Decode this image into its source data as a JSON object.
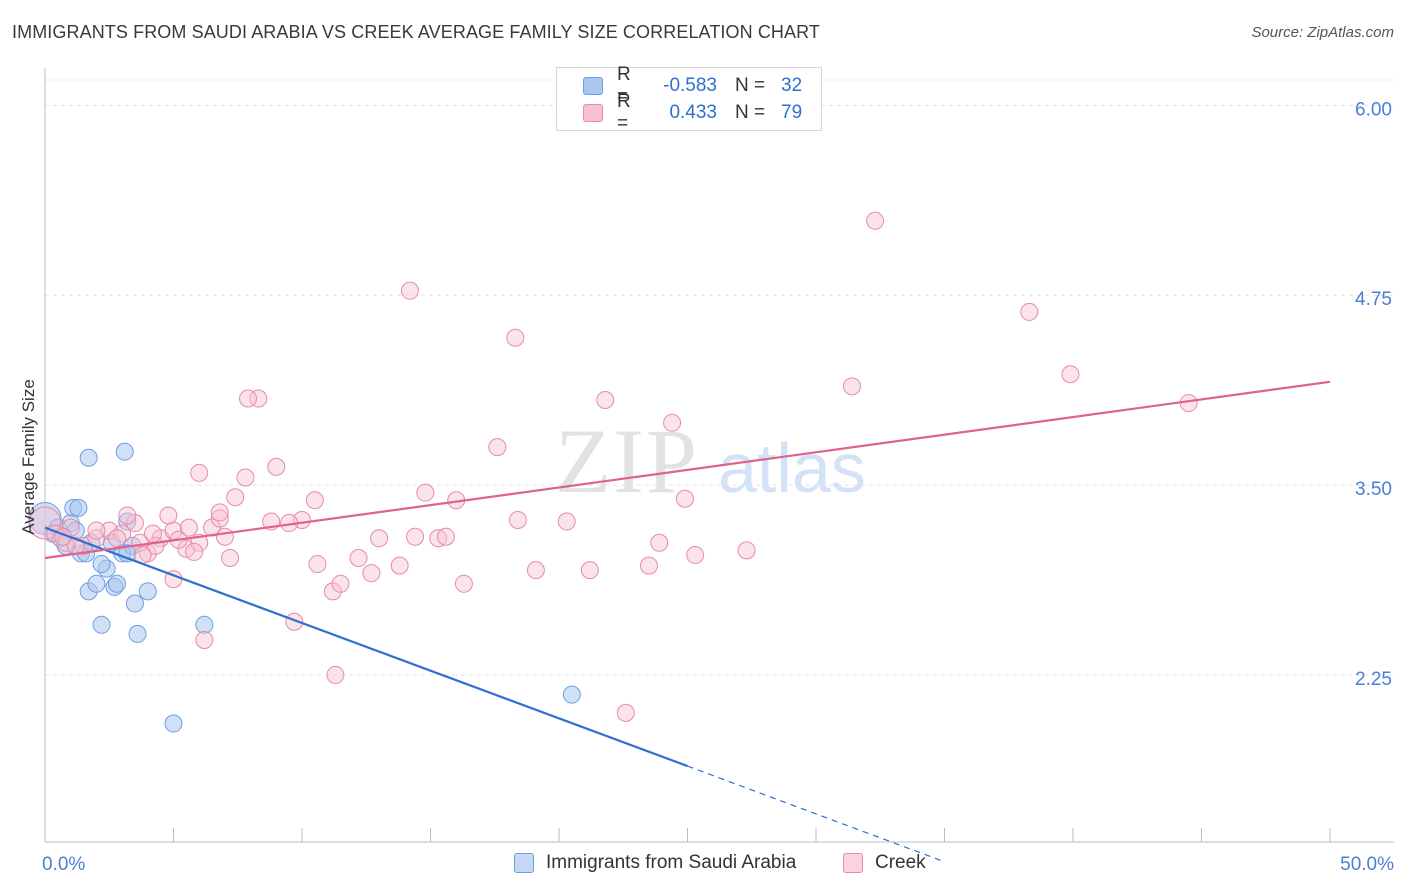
{
  "title": "IMMIGRANTS FROM SAUDI ARABIA VS CREEK AVERAGE FAMILY SIZE CORRELATION CHART",
  "source": "Source: ZipAtlas.com",
  "watermark": {
    "zip": "ZIP",
    "atlas": "atlas"
  },
  "legend": {
    "rows": [
      {
        "r_label": "R =",
        "r_value": "-0.583",
        "n_label": "N =",
        "n_value": "32",
        "color": "#a9c6f0",
        "border": "#6f9ee0"
      },
      {
        "r_label": "R =",
        "r_value": "0.433",
        "n_label": "N =",
        "n_value": "79",
        "color": "#f7c1d1",
        "border": "#e88aa8"
      }
    ]
  },
  "bottom_legend": [
    {
      "label": "Immigrants from Saudi Arabia",
      "color": "#c5d8f5",
      "border": "#6f9ee0"
    },
    {
      "label": "Creek",
      "color": "#fbd3df",
      "border": "#e88aa8"
    }
  ],
  "chart_data": {
    "type": "scatter",
    "title": "IMMIGRANTS FROM SAUDI ARABIA VS CREEK AVERAGE FAMILY SIZE CORRELATION CHART",
    "xlabel": "",
    "ylabel": "Average Family Size",
    "xlim": [
      0,
      50
    ],
    "ylim": [
      1.15,
      6.2
    ],
    "x_tick_labels": [
      "0.0%",
      "50.0%"
    ],
    "y_ticks": [
      2.25,
      3.5,
      4.75,
      6.0
    ],
    "y_tick_labels": [
      "2.25",
      "3.50",
      "4.75",
      "6.00"
    ],
    "grid": "horizontal dashed",
    "series": [
      {
        "name": "Immigrants from Saudi Arabia",
        "color": "#6f9ee0",
        "fill": "rgba(169,198,240,0.55)",
        "trend": {
          "x": [
            0,
            25
          ],
          "y": [
            3.22,
            1.65
          ],
          "dashed_to": [
            35,
            1.02
          ],
          "color": "#2f6fd1"
        },
        "points": [
          [
            0.0,
            3.28
          ],
          [
            0.3,
            3.18
          ],
          [
            0.5,
            3.22
          ],
          [
            0.6,
            3.15
          ],
          [
            0.8,
            3.1
          ],
          [
            1.0,
            3.25
          ],
          [
            1.2,
            3.2
          ],
          [
            1.4,
            3.05
          ],
          [
            1.1,
            3.35
          ],
          [
            1.3,
            3.35
          ],
          [
            1.6,
            3.05
          ],
          [
            1.8,
            3.12
          ],
          [
            1.7,
            2.8
          ],
          [
            2.0,
            2.85
          ],
          [
            2.2,
            2.58
          ],
          [
            2.4,
            2.95
          ],
          [
            2.6,
            3.12
          ],
          [
            2.7,
            2.83
          ],
          [
            2.8,
            2.85
          ],
          [
            3.0,
            3.05
          ],
          [
            3.2,
            3.26
          ],
          [
            3.4,
            3.1
          ],
          [
            3.1,
            3.72
          ],
          [
            1.7,
            3.68
          ],
          [
            3.2,
            3.05
          ],
          [
            3.5,
            2.72
          ],
          [
            3.6,
            2.52
          ],
          [
            4.0,
            2.8
          ],
          [
            5.0,
            1.93
          ],
          [
            6.2,
            2.58
          ],
          [
            20.5,
            2.12
          ],
          [
            2.2,
            2.98
          ]
        ]
      },
      {
        "name": "Creek",
        "color": "#e88aa8",
        "fill": "rgba(247,193,209,0.45)",
        "trend": {
          "x": [
            0,
            50
          ],
          "y": [
            3.02,
            4.18
          ],
          "color": "#e0628a"
        },
        "points": [
          [
            0.0,
            3.25
          ],
          [
            0.4,
            3.18
          ],
          [
            0.8,
            3.12
          ],
          [
            1.0,
            3.22
          ],
          [
            1.5,
            3.1
          ],
          [
            2.0,
            3.15
          ],
          [
            2.5,
            3.2
          ],
          [
            3.0,
            3.18
          ],
          [
            3.5,
            3.25
          ],
          [
            4.0,
            3.05
          ],
          [
            4.5,
            3.15
          ],
          [
            5.0,
            3.2
          ],
          [
            5.5,
            3.08
          ],
          [
            6.0,
            3.12
          ],
          [
            6.5,
            3.22
          ],
          [
            3.2,
            3.3
          ],
          [
            4.3,
            3.1
          ],
          [
            5.2,
            3.14
          ],
          [
            5.8,
            3.06
          ],
          [
            6.8,
            3.28
          ],
          [
            4.8,
            3.3
          ],
          [
            5.0,
            2.88
          ],
          [
            6.2,
            2.48
          ],
          [
            6.0,
            3.58
          ],
          [
            6.8,
            3.32
          ],
          [
            7.2,
            3.02
          ],
          [
            7.8,
            3.55
          ],
          [
            8.3,
            4.07
          ],
          [
            7.9,
            4.07
          ],
          [
            9.0,
            3.62
          ],
          [
            8.8,
            3.26
          ],
          [
            10.0,
            3.27
          ],
          [
            10.5,
            3.4
          ],
          [
            9.5,
            3.25
          ],
          [
            7.4,
            3.42
          ],
          [
            10.6,
            2.98
          ],
          [
            11.2,
            2.8
          ],
          [
            11.5,
            2.85
          ],
          [
            12.2,
            3.02
          ],
          [
            12.7,
            2.92
          ],
          [
            13.0,
            3.15
          ],
          [
            13.8,
            2.97
          ],
          [
            14.2,
            4.78
          ],
          [
            14.4,
            3.16
          ],
          [
            14.8,
            3.45
          ],
          [
            15.3,
            3.15
          ],
          [
            15.6,
            3.16
          ],
          [
            16.0,
            3.4
          ],
          [
            16.3,
            2.85
          ],
          [
            17.6,
            3.75
          ],
          [
            18.3,
            4.47
          ],
          [
            18.4,
            3.27
          ],
          [
            19.1,
            2.94
          ],
          [
            20.3,
            3.26
          ],
          [
            21.2,
            2.94
          ],
          [
            21.8,
            4.06
          ],
          [
            22.6,
            2.0
          ],
          [
            23.5,
            2.97
          ],
          [
            23.9,
            3.12
          ],
          [
            24.4,
            3.91
          ],
          [
            24.9,
            3.41
          ],
          [
            25.3,
            3.04
          ],
          [
            27.3,
            3.07
          ],
          [
            31.4,
            4.15
          ],
          [
            32.3,
            5.24
          ],
          [
            38.3,
            4.64
          ],
          [
            39.9,
            4.23
          ],
          [
            44.5,
            4.04
          ],
          [
            9.7,
            2.6
          ],
          [
            11.3,
            2.25
          ],
          [
            2.0,
            3.2
          ],
          [
            2.8,
            3.15
          ],
          [
            3.7,
            3.12
          ],
          [
            4.2,
            3.18
          ],
          [
            1.2,
            3.1
          ],
          [
            0.7,
            3.16
          ],
          [
            5.6,
            3.22
          ],
          [
            7.0,
            3.16
          ],
          [
            3.8,
            3.04
          ]
        ]
      }
    ]
  }
}
